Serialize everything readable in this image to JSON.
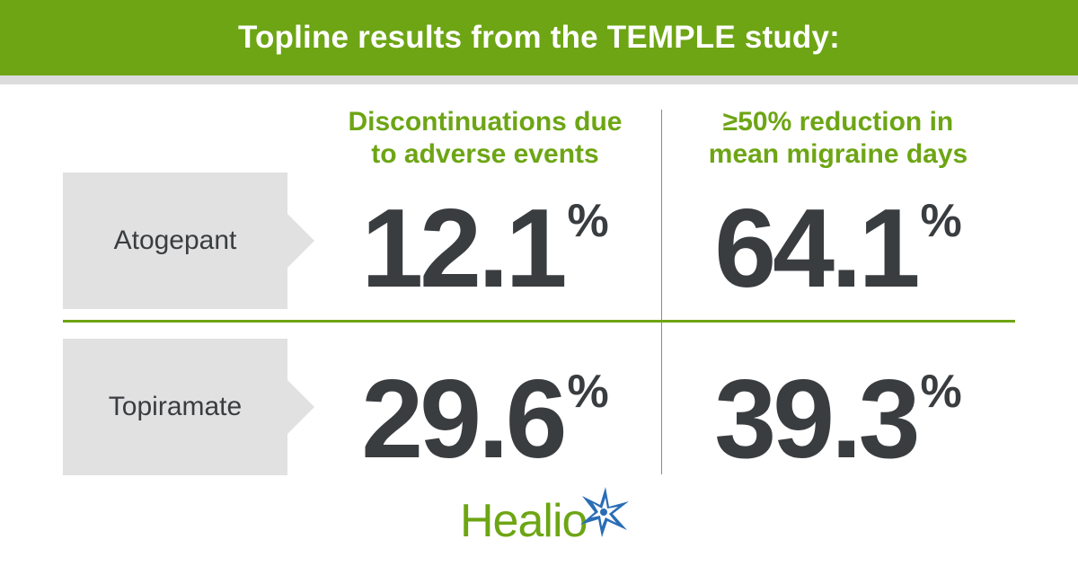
{
  "header": {
    "title": "Topline results from the TEMPLE study:"
  },
  "columns": [
    {
      "line1": "Discontinuations due",
      "line2": "to adverse events"
    },
    {
      "line1": "≥50% reduction in",
      "line2": "mean migraine days"
    }
  ],
  "rows": [
    {
      "label": "Atogepant",
      "values": [
        "12.1",
        "64.1"
      ]
    },
    {
      "label": "Topiramate",
      "values": [
        "29.6",
        "39.3"
      ]
    }
  ],
  "unit": "%",
  "logo": {
    "text": "Healio",
    "icon": "star-burst-icon"
  },
  "colors": {
    "accent": "#6da514",
    "text": "#3a3d40",
    "label_bg": "#e1e1e1",
    "logo_star": "#2a6db5"
  }
}
